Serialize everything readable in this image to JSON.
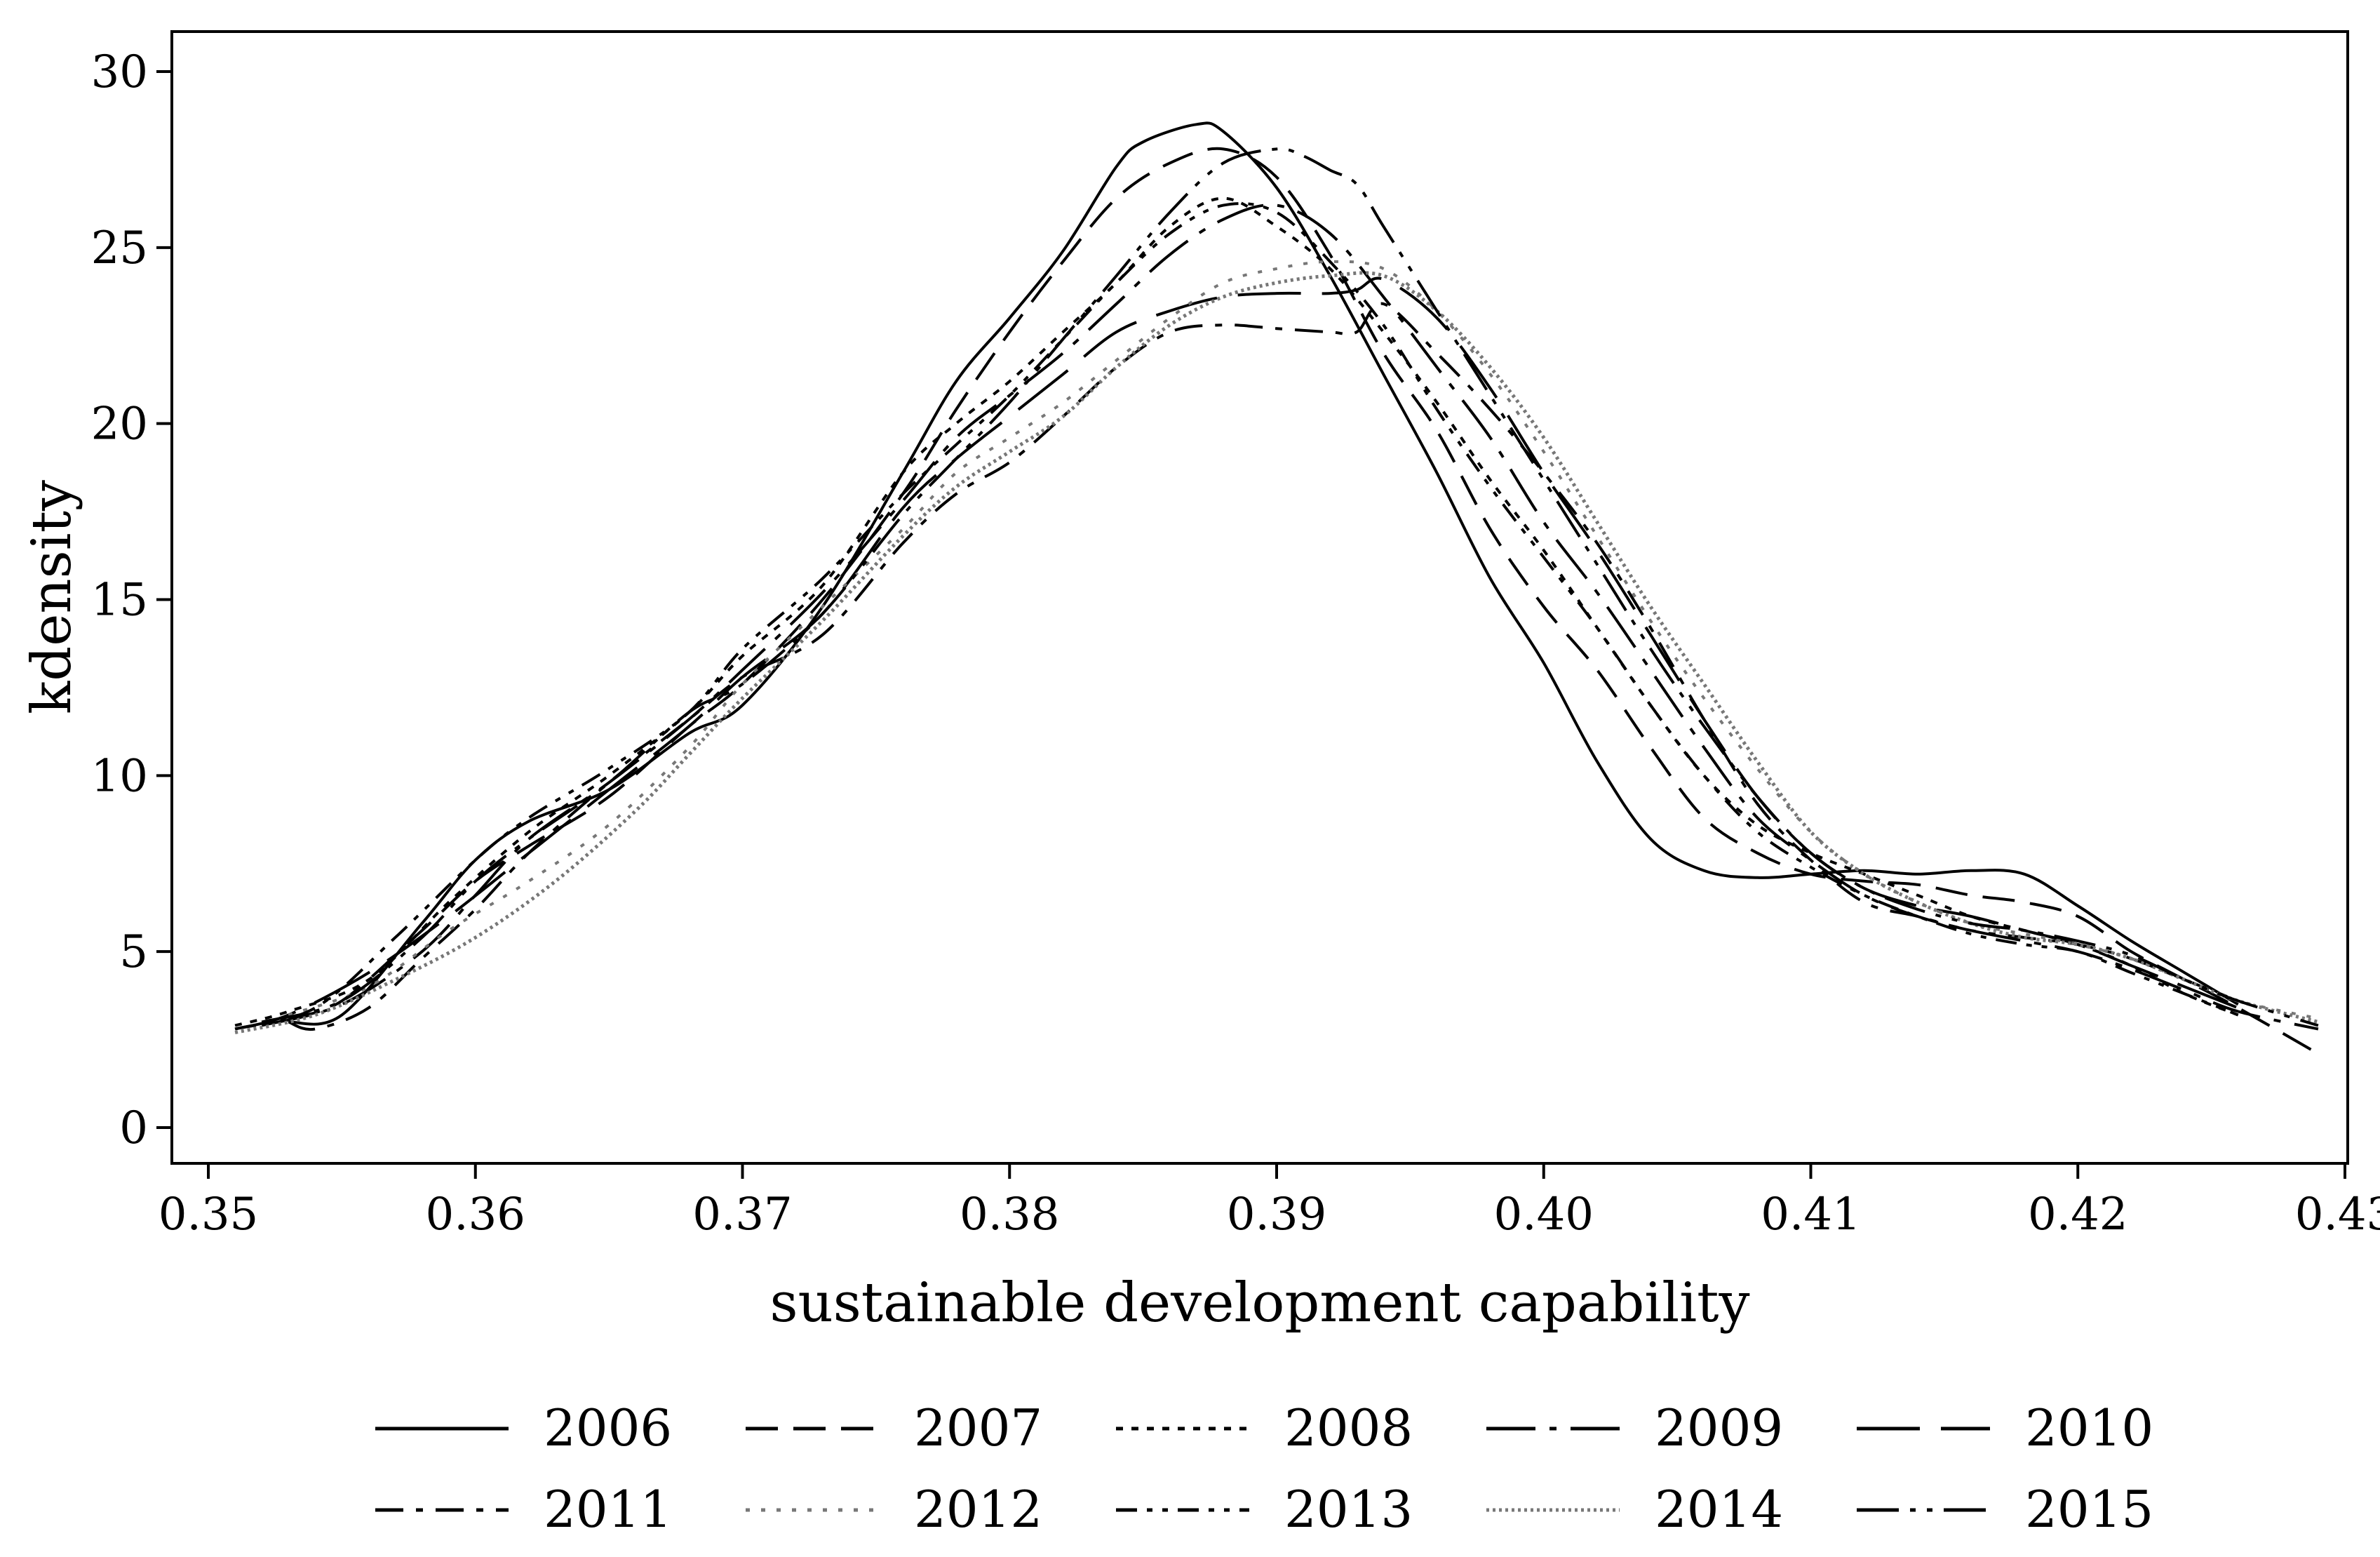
{
  "chart_data": {
    "type": "line",
    "title": "",
    "xlabel": "sustainable development capability",
    "ylabel": "kdensity",
    "xlim": [
      0.35,
      0.43
    ],
    "ylim": [
      0,
      30
    ],
    "xticks": [
      "0.35",
      "0.36",
      "0.37",
      "0.38",
      "0.39",
      "0.40",
      "0.41",
      "0.42",
      "0.43"
    ],
    "yticks": [
      "0",
      "5",
      "10",
      "15",
      "20",
      "25",
      "30"
    ],
    "grid": false,
    "legend_position": "bottom",
    "series": [
      {
        "name": "2006",
        "dash": "solid",
        "x": [
          0.353,
          0.355,
          0.358,
          0.36,
          0.362,
          0.365,
          0.368,
          0.37,
          0.373,
          0.376,
          0.378,
          0.38,
          0.382,
          0.384,
          0.385,
          0.387,
          0.388,
          0.39,
          0.392,
          0.394,
          0.396,
          0.398,
          0.4,
          0.402,
          0.404,
          0.406,
          0.408,
          0.41,
          0.412,
          0.414,
          0.416,
          0.418,
          0.42,
          0.422,
          0.424,
          0.426
        ],
        "values": [
          3.0,
          3.2,
          5.8,
          7.6,
          8.7,
          9.6,
          11.2,
          12.0,
          14.8,
          18.6,
          21.2,
          23.0,
          24.9,
          27.3,
          28.0,
          28.5,
          28.3,
          26.7,
          24.2,
          21.4,
          18.6,
          15.6,
          13.2,
          10.4,
          8.2,
          7.3,
          7.1,
          7.2,
          7.3,
          7.2,
          7.3,
          7.2,
          6.3,
          5.3,
          4.4,
          3.5
        ]
      },
      {
        "name": "2007",
        "dash": "long-dash",
        "x": [
          0.353,
          0.355,
          0.358,
          0.36,
          0.362,
          0.365,
          0.368,
          0.37,
          0.373,
          0.376,
          0.378,
          0.38,
          0.382,
          0.384,
          0.386,
          0.388,
          0.39,
          0.392,
          0.394,
          0.396,
          0.398,
          0.4,
          0.402,
          0.404,
          0.406,
          0.408,
          0.41,
          0.412,
          0.414,
          0.416,
          0.418,
          0.42,
          0.422,
          0.424,
          0.426,
          0.429
        ],
        "values": [
          3.1,
          3.6,
          5.6,
          7.0,
          8.0,
          9.4,
          11.4,
          12.6,
          15.0,
          18.0,
          20.4,
          22.6,
          24.6,
          26.4,
          27.4,
          27.8,
          27.0,
          24.8,
          22.0,
          19.8,
          17.0,
          14.8,
          13.0,
          10.8,
          8.8,
          7.8,
          7.2,
          7.0,
          6.9,
          6.6,
          6.4,
          6.0,
          5.0,
          4.2,
          3.4,
          2.1
        ]
      },
      {
        "name": "2008",
        "dash": "dotted",
        "x": [
          0.351,
          0.353,
          0.356,
          0.359,
          0.362,
          0.365,
          0.368,
          0.37,
          0.373,
          0.376,
          0.378,
          0.38,
          0.382,
          0.384,
          0.386,
          0.388,
          0.39,
          0.392,
          0.394,
          0.396,
          0.398,
          0.4,
          0.402,
          0.404,
          0.406,
          0.408,
          0.41,
          0.412,
          0.414,
          0.416,
          0.418,
          0.42,
          0.422,
          0.424,
          0.426
        ],
        "values": [
          2.9,
          3.3,
          4.2,
          6.4,
          8.4,
          10.0,
          11.8,
          13.4,
          15.4,
          18.6,
          20.0,
          21.2,
          22.6,
          24.0,
          25.6,
          26.4,
          25.6,
          24.4,
          22.6,
          20.6,
          18.4,
          16.4,
          14.2,
          12.0,
          10.0,
          8.6,
          7.8,
          7.2,
          6.6,
          6.0,
          5.6,
          5.2,
          4.6,
          3.8,
          3.2
        ]
      },
      {
        "name": "2009",
        "dash": "long-dash-dot",
        "x": [
          0.352,
          0.355,
          0.358,
          0.36,
          0.362,
          0.365,
          0.368,
          0.37,
          0.373,
          0.376,
          0.378,
          0.38,
          0.382,
          0.384,
          0.386,
          0.388,
          0.39,
          0.392,
          0.394,
          0.396,
          0.398,
          0.4,
          0.402,
          0.404,
          0.406,
          0.408,
          0.41,
          0.412,
          0.414,
          0.416,
          0.418,
          0.42,
          0.422,
          0.424,
          0.426,
          0.429
        ],
        "values": [
          2.9,
          3.5,
          5.0,
          6.6,
          8.2,
          9.8,
          11.6,
          13.0,
          15.2,
          17.8,
          19.6,
          20.8,
          22.0,
          23.4,
          24.8,
          25.8,
          26.2,
          25.4,
          23.6,
          21.6,
          19.6,
          17.2,
          15.2,
          13.0,
          10.8,
          8.8,
          7.6,
          6.6,
          6.0,
          5.6,
          5.3,
          5.0,
          4.5,
          3.9,
          3.3,
          2.8
        ]
      },
      {
        "name": "2010",
        "dash": "very-long-dash",
        "x": [
          0.351,
          0.353,
          0.356,
          0.359,
          0.362,
          0.365,
          0.368,
          0.37,
          0.373,
          0.376,
          0.378,
          0.38,
          0.382,
          0.384,
          0.386,
          0.388,
          0.39,
          0.392,
          0.393,
          0.394,
          0.396,
          0.398,
          0.4,
          0.402,
          0.404,
          0.406,
          0.408,
          0.41,
          0.412,
          0.414,
          0.416,
          0.418,
          0.42,
          0.422,
          0.424,
          0.426
        ],
        "values": [
          2.8,
          3.2,
          4.4,
          6.0,
          7.8,
          9.6,
          11.4,
          12.8,
          14.6,
          17.6,
          19.0,
          20.2,
          21.4,
          22.6,
          23.2,
          23.6,
          23.7,
          23.7,
          23.8,
          24.1,
          23.0,
          21.0,
          18.6,
          16.4,
          14.0,
          11.6,
          9.4,
          7.8,
          6.8,
          6.3,
          6.0,
          5.6,
          5.2,
          4.6,
          4.0,
          3.4
        ]
      },
      {
        "name": "2011",
        "dash": "dash-dot",
        "x": [
          0.353,
          0.354,
          0.356,
          0.358,
          0.36,
          0.362,
          0.365,
          0.368,
          0.37,
          0.373,
          0.376,
          0.378,
          0.38,
          0.382,
          0.384,
          0.386,
          0.388,
          0.39,
          0.392,
          0.393,
          0.394,
          0.396,
          0.398,
          0.4,
          0.402,
          0.404,
          0.406,
          0.408,
          0.41,
          0.412,
          0.414,
          0.416,
          0.418,
          0.42,
          0.422,
          0.424,
          0.426
        ],
        "values": [
          3.0,
          2.8,
          3.4,
          4.8,
          6.2,
          7.8,
          9.8,
          11.6,
          12.8,
          14.0,
          16.6,
          18.0,
          18.9,
          20.2,
          21.6,
          22.6,
          22.8,
          22.7,
          22.6,
          22.6,
          23.4,
          22.0,
          20.4,
          18.6,
          16.6,
          14.2,
          11.6,
          9.2,
          7.6,
          6.4,
          6.0,
          5.6,
          5.4,
          5.2,
          4.8,
          4.2,
          3.6
        ]
      },
      {
        "name": "2012",
        "dash": "sparse-dot",
        "x": [
          0.353,
          0.356,
          0.359,
          0.362,
          0.365,
          0.368,
          0.37,
          0.373,
          0.376,
          0.378,
          0.38,
          0.382,
          0.384,
          0.386,
          0.388,
          0.39,
          0.392,
          0.394,
          0.396,
          0.398,
          0.4,
          0.402,
          0.404,
          0.406,
          0.408,
          0.41,
          0.412,
          0.414,
          0.416,
          0.418,
          0.42,
          0.422,
          0.424,
          0.426,
          0.429
        ],
        "values": [
          3.2,
          4.0,
          5.6,
          7.0,
          8.6,
          10.8,
          12.6,
          14.8,
          17.0,
          18.6,
          19.6,
          20.6,
          21.8,
          23.0,
          24.0,
          24.4,
          24.6,
          24.4,
          23.2,
          21.4,
          19.2,
          16.8,
          14.4,
          12.2,
          10.2,
          8.4,
          7.2,
          6.4,
          5.8,
          5.5,
          5.2,
          4.8,
          4.2,
          3.6,
          3.1
        ]
      },
      {
        "name": "2013",
        "dash": "dash-dot-dot",
        "x": [
          0.351,
          0.354,
          0.357,
          0.36,
          0.362,
          0.365,
          0.368,
          0.37,
          0.373,
          0.376,
          0.378,
          0.38,
          0.382,
          0.384,
          0.386,
          0.388,
          0.39,
          0.392,
          0.394,
          0.396,
          0.398,
          0.4,
          0.402,
          0.404,
          0.406,
          0.408,
          0.41,
          0.412,
          0.414,
          0.416,
          0.418,
          0.42,
          0.422,
          0.424,
          0.426
        ],
        "values": [
          2.8,
          3.4,
          5.4,
          7.6,
          8.8,
          10.2,
          11.8,
          13.6,
          15.6,
          18.0,
          19.4,
          20.8,
          22.4,
          24.0,
          25.4,
          26.2,
          26.0,
          24.6,
          22.8,
          20.4,
          18.2,
          16.2,
          14.2,
          12.0,
          10.0,
          8.4,
          7.4,
          6.6,
          6.0,
          5.5,
          5.2,
          5.0,
          4.4,
          3.8,
          3.2
        ]
      },
      {
        "name": "2014",
        "dash": "dense-dot",
        "x": [
          0.351,
          0.354,
          0.357,
          0.36,
          0.363,
          0.366,
          0.368,
          0.37,
          0.373,
          0.376,
          0.378,
          0.38,
          0.382,
          0.384,
          0.386,
          0.388,
          0.39,
          0.392,
          0.394,
          0.396,
          0.398,
          0.4,
          0.402,
          0.404,
          0.406,
          0.408,
          0.41,
          0.412,
          0.414,
          0.416,
          0.418,
          0.42,
          0.422,
          0.424,
          0.426,
          0.429
        ],
        "values": [
          2.7,
          3.2,
          4.2,
          5.4,
          7.0,
          9.0,
          10.6,
          12.2,
          14.4,
          16.8,
          18.2,
          19.2,
          20.2,
          21.6,
          22.8,
          23.6,
          24.0,
          24.2,
          24.2,
          23.2,
          21.6,
          19.6,
          17.2,
          14.8,
          12.6,
          10.4,
          8.4,
          7.2,
          6.4,
          5.8,
          5.4,
          5.2,
          4.8,
          4.2,
          3.6,
          3.0
        ]
      },
      {
        "name": "2015",
        "dash": "long-dash-dot-dot",
        "x": [
          0.352,
          0.355,
          0.358,
          0.36,
          0.362,
          0.365,
          0.368,
          0.37,
          0.373,
          0.376,
          0.378,
          0.38,
          0.382,
          0.384,
          0.386,
          0.388,
          0.39,
          0.391,
          0.392,
          0.393,
          0.394,
          0.396,
          0.398,
          0.4,
          0.402,
          0.404,
          0.406,
          0.408,
          0.41,
          0.412,
          0.414,
          0.416,
          0.418,
          0.42,
          0.422,
          0.424,
          0.426,
          0.429
        ],
        "values": [
          3.0,
          3.6,
          5.4,
          7.0,
          8.2,
          9.8,
          11.8,
          12.6,
          14.6,
          17.4,
          19.0,
          20.6,
          22.4,
          24.2,
          26.0,
          27.4,
          27.8,
          27.6,
          27.2,
          26.8,
          25.6,
          23.2,
          20.8,
          18.4,
          16.0,
          13.6,
          11.4,
          9.4,
          7.8,
          6.8,
          6.2,
          5.8,
          5.6,
          5.3,
          4.9,
          4.2,
          3.6,
          2.9
        ]
      }
    ]
  }
}
